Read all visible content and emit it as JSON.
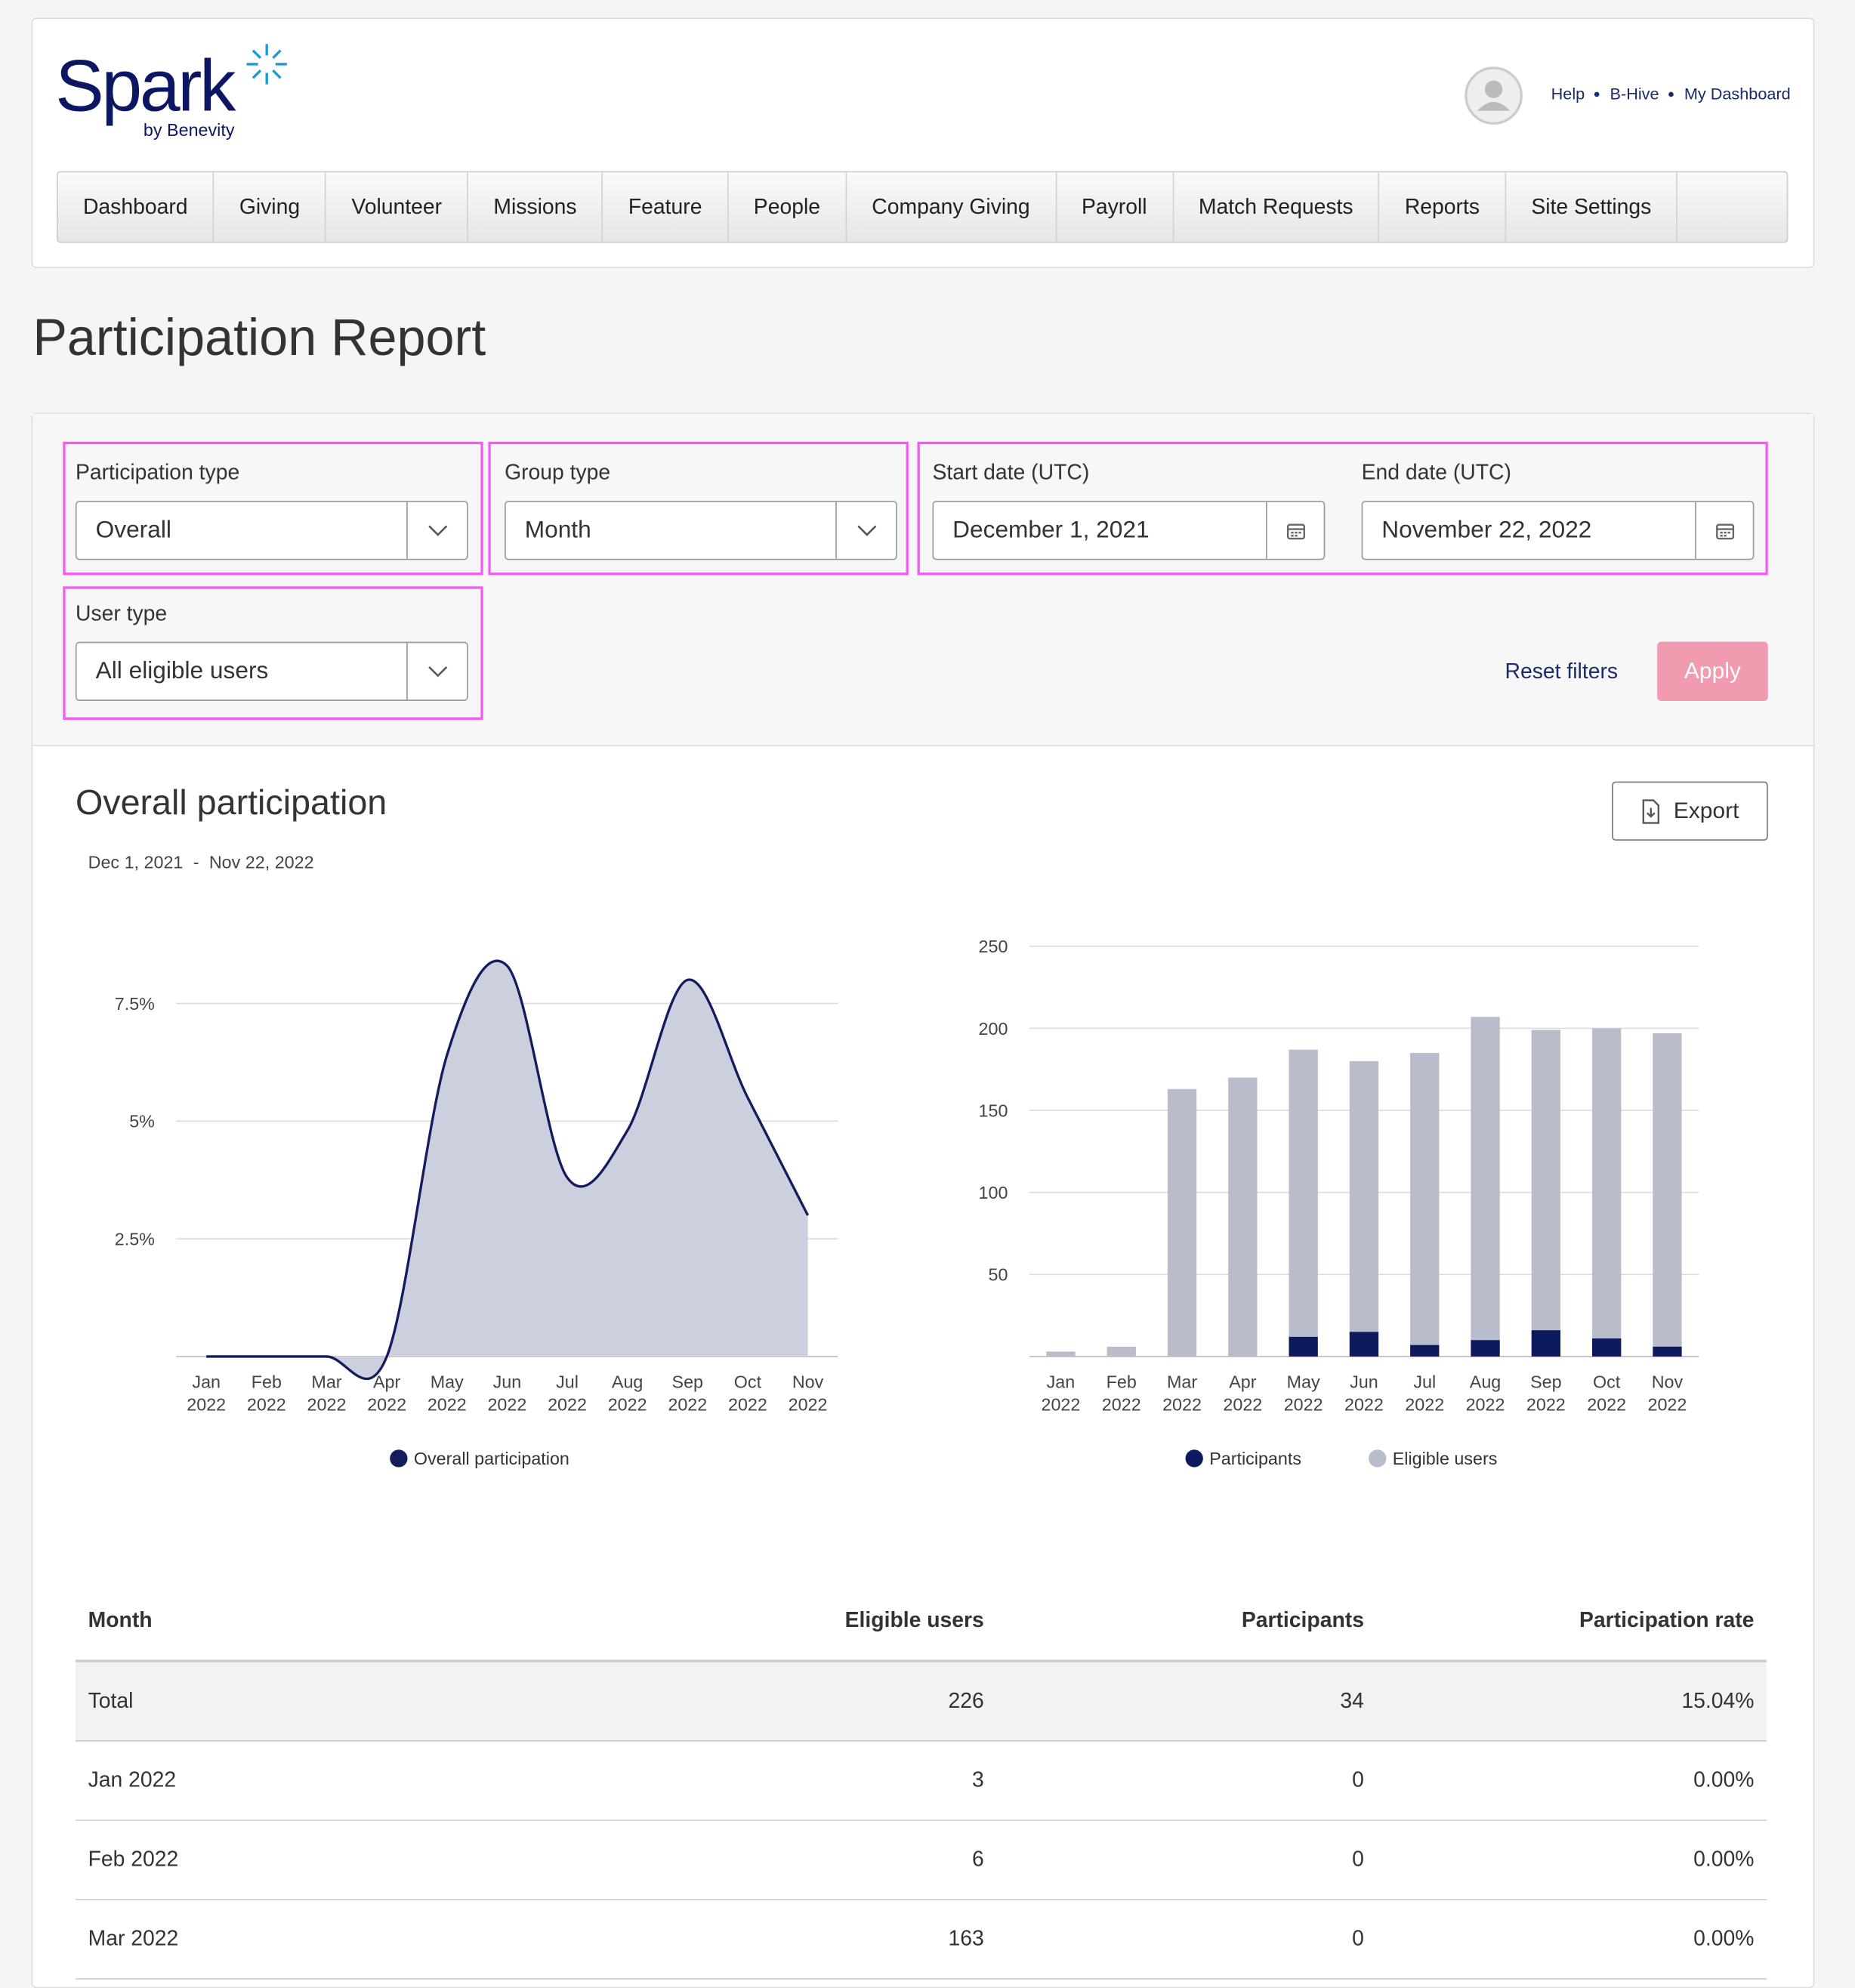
{
  "header": {
    "logo": "Spark",
    "logo_sub": "by Benevity",
    "links": [
      "Help",
      "B-Hive",
      "My Dashboard"
    ]
  },
  "nav": [
    "Dashboard",
    "Giving",
    "Volunteer",
    "Missions",
    "Feature",
    "People",
    "Company Giving",
    "Payroll",
    "Match Requests",
    "Reports",
    "Site Settings"
  ],
  "page_title": "Participation Report",
  "filters": {
    "participation_type": {
      "label": "Participation type",
      "value": "Overall"
    },
    "group_type": {
      "label": "Group type",
      "value": "Month"
    },
    "start_date": {
      "label": "Start date (UTC)",
      "value": "December 1, 2021"
    },
    "end_date": {
      "label": "End date (UTC)",
      "value": "November 22, 2022"
    },
    "user_type": {
      "label": "User type",
      "value": "All eligible users"
    },
    "reset": "Reset filters",
    "apply": "Apply"
  },
  "section": {
    "title": "Overall participation",
    "date_from": "Dec 1, 2021",
    "date_separator": "-",
    "date_to": "Nov 22, 2022",
    "export": "Export"
  },
  "chart_data": [
    {
      "type": "area",
      "categories": [
        "Jan 2022",
        "Feb 2022",
        "Mar 2022",
        "Apr 2022",
        "May 2022",
        "Jun 2022",
        "Jul 2022",
        "Aug 2022",
        "Sep 2022",
        "Oct 2022",
        "Nov 2022"
      ],
      "series": [
        {
          "name": "Overall participation",
          "color": "#131c5c",
          "fill": "#ccd0de",
          "values": [
            0,
            0,
            0,
            0,
            6.4,
            8.3,
            3.8,
            4.8,
            8.0,
            5.5,
            3.0
          ]
        }
      ],
      "ylim": [
        0,
        8.5
      ],
      "yticks": [
        {
          "value": 2.5,
          "label": "2.5%"
        },
        {
          "value": 5,
          "label": "5%"
        },
        {
          "value": 7.5,
          "label": "7.5%"
        }
      ],
      "grid": true,
      "legend": "bottom"
    },
    {
      "type": "bar",
      "categories": [
        "Jan 2022",
        "Feb 2022",
        "Mar 2022",
        "Apr 2022",
        "May 2022",
        "Jun 2022",
        "Jul 2022",
        "Aug 2022",
        "Sep 2022",
        "Oct 2022",
        "Nov 2022"
      ],
      "series": [
        {
          "name": "Participants",
          "color": "#0d1b5e",
          "values": [
            0,
            0,
            0,
            0,
            12,
            15,
            7,
            10,
            16,
            11,
            6
          ]
        },
        {
          "name": "Eligible users",
          "color": "#b8bccb",
          "values": [
            3,
            6,
            163,
            170,
            187,
            180,
            185,
            207,
            199,
            200,
            197
          ]
        }
      ],
      "ylim": [
        0,
        250
      ],
      "yticks": [
        50,
        100,
        150,
        200,
        250
      ],
      "grid": true,
      "legend": "bottom"
    }
  ],
  "table": {
    "columns": [
      "Month",
      "Eligible users",
      "Participants",
      "Participation rate"
    ],
    "rows": [
      [
        "Total",
        "226",
        "34",
        "15.04%"
      ],
      [
        "Jan 2022",
        "3",
        "0",
        "0.00%"
      ],
      [
        "Feb 2022",
        "6",
        "0",
        "0.00%"
      ],
      [
        "Mar 2022",
        "163",
        "0",
        "0.00%"
      ]
    ]
  }
}
